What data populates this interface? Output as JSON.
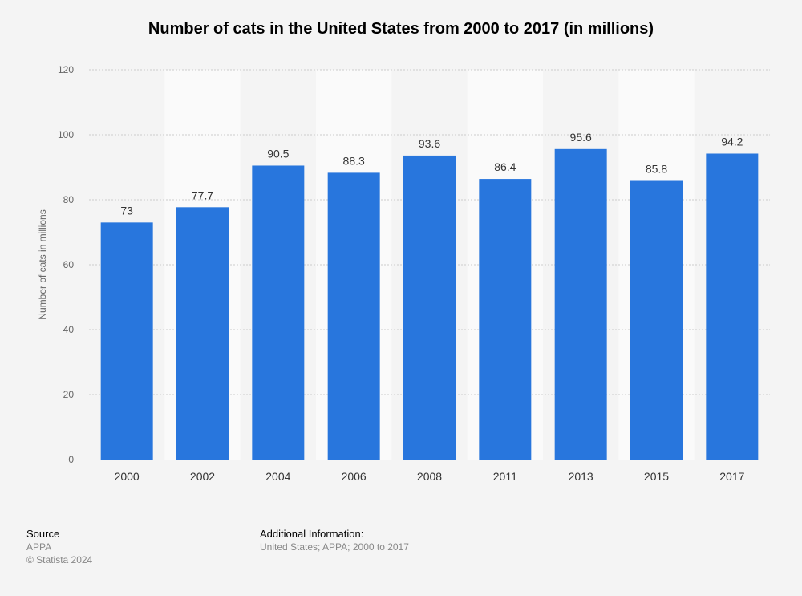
{
  "chart_data": {
    "type": "bar",
    "title": "Number of cats in the United States from 2000 to 2017 (in millions)",
    "xlabel": "",
    "ylabel": "Number of cats in millions",
    "categories": [
      "2000",
      "2002",
      "2004",
      "2006",
      "2008",
      "2011",
      "2013",
      "2015",
      "2017"
    ],
    "values": [
      73,
      77.7,
      90.5,
      88.3,
      93.6,
      86.4,
      95.6,
      85.8,
      94.2
    ],
    "data_labels": [
      "73",
      "77.7",
      "90.5",
      "88.3",
      "93.6",
      "86.4",
      "95.6",
      "85.8",
      "94.2"
    ],
    "ylim": [
      0,
      120
    ],
    "yticks": [
      0,
      20,
      40,
      60,
      80,
      100,
      120
    ],
    "grid": true,
    "legend": "none",
    "colors": {
      "bar": "#2876dd",
      "background": "#f4f4f4",
      "band": "#fafafa"
    }
  },
  "footer": {
    "source_heading": "Source",
    "source": "APPA",
    "copyright": "© Statista 2024",
    "info_heading": "Additional Information:",
    "info": "United States; APPA; 2000 to 2017"
  }
}
